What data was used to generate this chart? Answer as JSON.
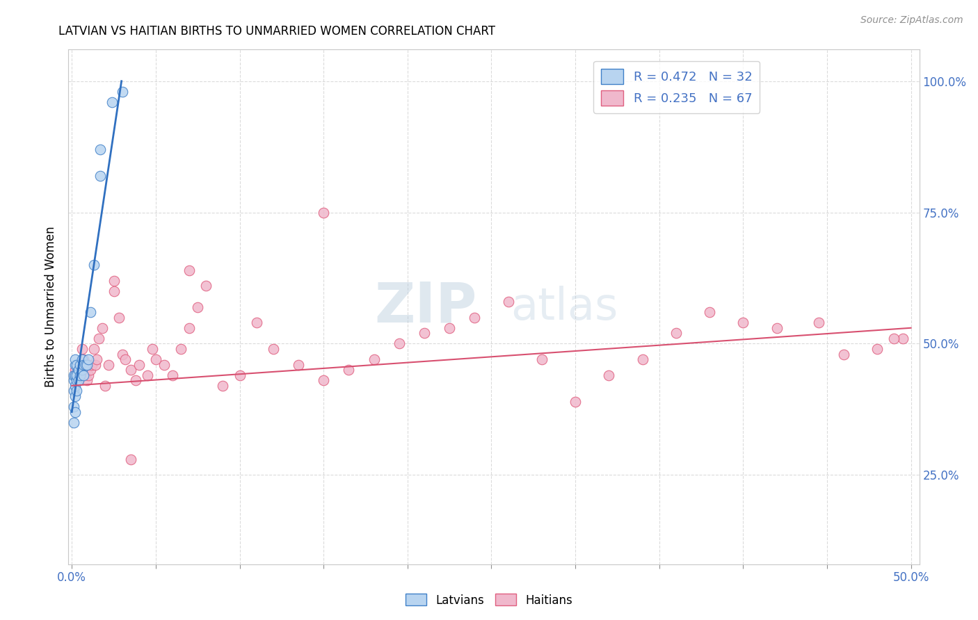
{
  "title": "LATVIAN VS HAITIAN BIRTHS TO UNMARRIED WOMEN CORRELATION CHART",
  "source": "Source: ZipAtlas.com",
  "ylabel": "Births to Unmarried Women",
  "xlim": [
    -0.002,
    0.505
  ],
  "ylim": [
    0.08,
    1.06
  ],
  "xtick_positions": [
    0.0,
    0.05,
    0.1,
    0.15,
    0.2,
    0.25,
    0.3,
    0.35,
    0.4,
    0.45,
    0.5
  ],
  "xticklabels": [
    "0.0%",
    "",
    "",
    "",
    "",
    "",
    "",
    "",
    "",
    "",
    "50.0%"
  ],
  "ytick_positions": [
    0.25,
    0.5,
    0.75,
    1.0
  ],
  "yticklabels_right": [
    "25.0%",
    "50.0%",
    "75.0%",
    "100.0%"
  ],
  "latvian_R": 0.472,
  "latvian_N": 32,
  "haitian_R": 0.235,
  "haitian_N": 67,
  "latvian_fill": "#b8d4f0",
  "haitian_fill": "#f0b8cc",
  "latvian_edge": "#4080c8",
  "haitian_edge": "#e06080",
  "latvian_line": "#3070c0",
  "haitian_line": "#d85070",
  "watermark_color": "#d0dff0",
  "grid_color": "#d8d8d8",
  "tick_color": "#4472c4",
  "latvian_x": [
    0.001,
    0.001,
    0.001,
    0.001,
    0.001,
    0.002,
    0.002,
    0.002,
    0.002,
    0.002,
    0.002,
    0.003,
    0.003,
    0.003,
    0.003,
    0.004,
    0.004,
    0.005,
    0.005,
    0.006,
    0.006,
    0.007,
    0.007,
    0.008,
    0.009,
    0.01,
    0.011,
    0.013,
    0.017,
    0.017,
    0.024,
    0.03
  ],
  "latvian_y": [
    0.35,
    0.38,
    0.41,
    0.43,
    0.44,
    0.37,
    0.4,
    0.42,
    0.44,
    0.46,
    0.47,
    0.41,
    0.43,
    0.44,
    0.46,
    0.43,
    0.45,
    0.44,
    0.46,
    0.45,
    0.47,
    0.44,
    0.46,
    0.46,
    0.46,
    0.47,
    0.56,
    0.65,
    0.82,
    0.87,
    0.96,
    0.98
  ],
  "haitian_x": [
    0.002,
    0.002,
    0.003,
    0.004,
    0.004,
    0.005,
    0.006,
    0.007,
    0.008,
    0.009,
    0.01,
    0.01,
    0.011,
    0.012,
    0.013,
    0.014,
    0.015,
    0.016,
    0.018,
    0.02,
    0.022,
    0.025,
    0.028,
    0.03,
    0.032,
    0.035,
    0.038,
    0.04,
    0.045,
    0.048,
    0.05,
    0.055,
    0.06,
    0.065,
    0.07,
    0.075,
    0.08,
    0.09,
    0.1,
    0.11,
    0.12,
    0.135,
    0.15,
    0.165,
    0.18,
    0.195,
    0.21,
    0.225,
    0.24,
    0.26,
    0.28,
    0.3,
    0.32,
    0.34,
    0.36,
    0.38,
    0.4,
    0.42,
    0.445,
    0.46,
    0.48,
    0.495,
    0.035,
    0.07,
    0.15,
    0.49,
    0.025
  ],
  "haitian_y": [
    0.44,
    0.45,
    0.43,
    0.46,
    0.44,
    0.46,
    0.49,
    0.47,
    0.44,
    0.43,
    0.44,
    0.46,
    0.45,
    0.46,
    0.49,
    0.46,
    0.47,
    0.51,
    0.53,
    0.42,
    0.46,
    0.62,
    0.55,
    0.48,
    0.47,
    0.45,
    0.43,
    0.46,
    0.44,
    0.49,
    0.47,
    0.46,
    0.44,
    0.49,
    0.53,
    0.57,
    0.61,
    0.42,
    0.44,
    0.54,
    0.49,
    0.46,
    0.43,
    0.45,
    0.47,
    0.5,
    0.52,
    0.53,
    0.55,
    0.58,
    0.47,
    0.39,
    0.44,
    0.47,
    0.52,
    0.56,
    0.54,
    0.53,
    0.54,
    0.48,
    0.49,
    0.51,
    0.28,
    0.64,
    0.75,
    0.51,
    0.6
  ],
  "latvian_line_x": [
    0.0,
    0.0296
  ],
  "latvian_line_y": [
    0.37,
    1.0
  ],
  "haitian_line_x": [
    0.0,
    0.5
  ],
  "haitian_line_y": [
    0.42,
    0.53
  ]
}
